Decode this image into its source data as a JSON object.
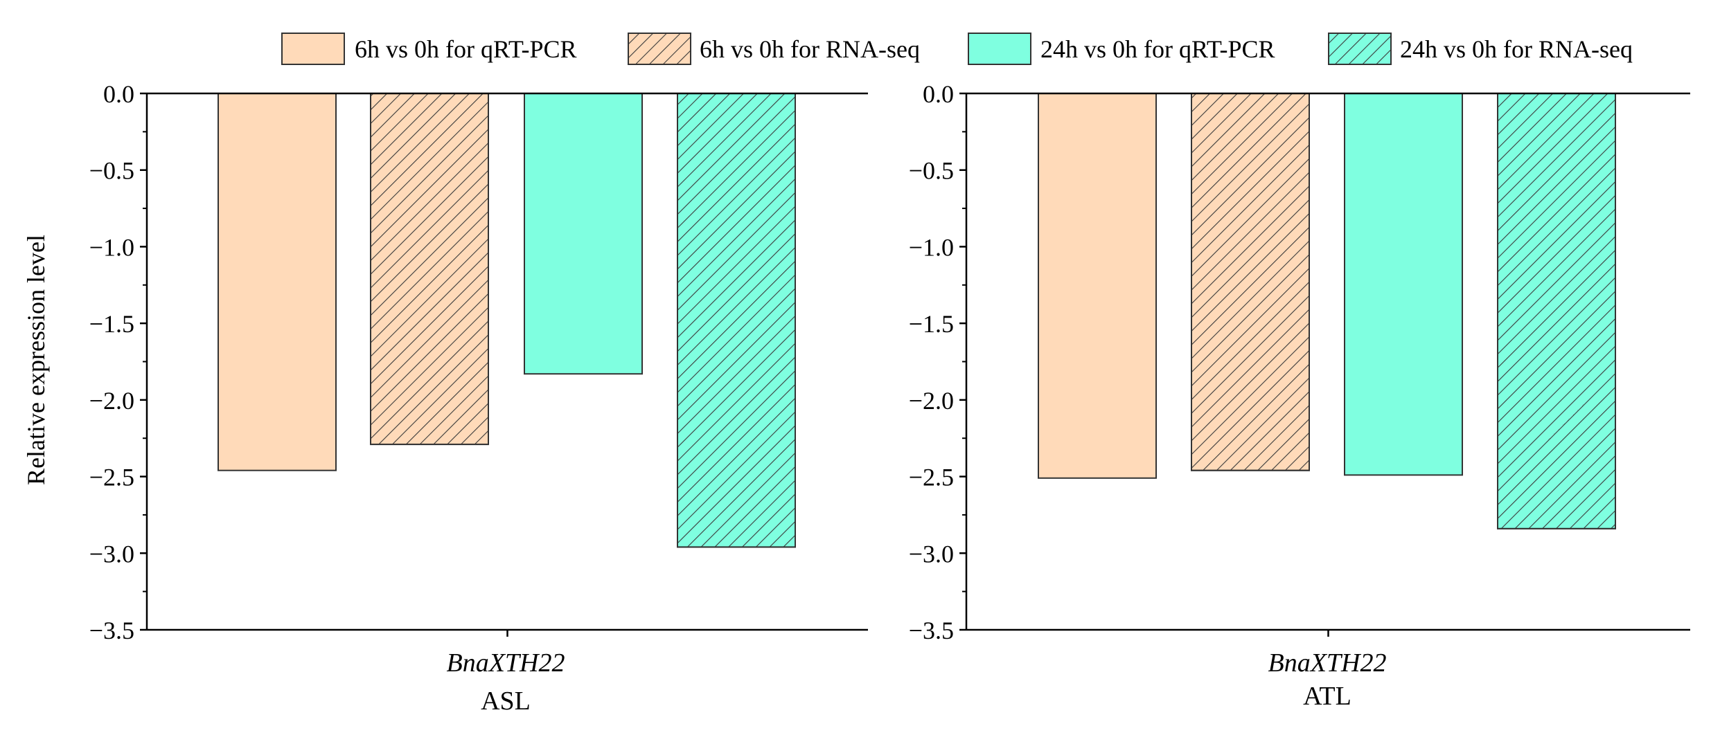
{
  "chart_data": [
    {
      "type": "bar",
      "panel": "ASL",
      "gene": "BnaXTH22",
      "group_label": "ASL",
      "categories": [
        "BnaXTH22"
      ],
      "ylabel": "Relative expression level",
      "ylim": [
        -3.5,
        0.0
      ],
      "yticks": [
        "0.0",
        "-0.5",
        "-1.0",
        "-1.5",
        "-2.0",
        "-2.5",
        "-3.0",
        "-3.5"
      ],
      "series": [
        {
          "name": "6h vs 0h for qRT-PCR",
          "values": [
            -2.46
          ]
        },
        {
          "name": "6h vs 0h for RNA-seq",
          "values": [
            -2.29
          ]
        },
        {
          "name": "24h vs 0h for qRT-PCR",
          "values": [
            -1.83
          ]
        },
        {
          "name": "24h vs 0h for RNA-seq",
          "values": [
            -2.96
          ]
        }
      ]
    },
    {
      "type": "bar",
      "panel": "ATL",
      "gene": "BnaXTH22",
      "group_label": "ATL",
      "categories": [
        "BnaXTH22"
      ],
      "ylabel": "",
      "ylim": [
        -3.5,
        0.0
      ],
      "yticks": [
        "0.0",
        "-0.5",
        "-1.0",
        "-1.5",
        "-2.0",
        "-2.5",
        "-3.0",
        "-3.5"
      ],
      "series": [
        {
          "name": "6h vs 0h for qRT-PCR",
          "values": [
            -2.51
          ]
        },
        {
          "name": "6h vs 0h for RNA-seq",
          "values": [
            -2.46
          ]
        },
        {
          "name": "24h vs 0h for qRT-PCR",
          "values": [
            -2.49
          ]
        },
        {
          "name": "24h vs 0h for RNA-seq",
          "values": [
            -2.84
          ]
        }
      ]
    }
  ],
  "legend": {
    "placement": "top",
    "entries": [
      {
        "label": "6h vs 0h for qRT-PCR",
        "color": "#FFDAB9",
        "hatched": false
      },
      {
        "label": "6h vs 0h for RNA-seq",
        "color": "#FFDAB9",
        "hatched": true
      },
      {
        "label": "24h vs 0h for qRT-PCR",
        "color": "#7FFFE0",
        "hatched": false
      },
      {
        "label": "24h vs 0h for RNA-seq",
        "color": "#7FFFE0",
        "hatched": true
      }
    ]
  },
  "colors": {
    "peach": "#FFDAB9",
    "aqua": "#7FFFE0",
    "outline": "#333333"
  }
}
